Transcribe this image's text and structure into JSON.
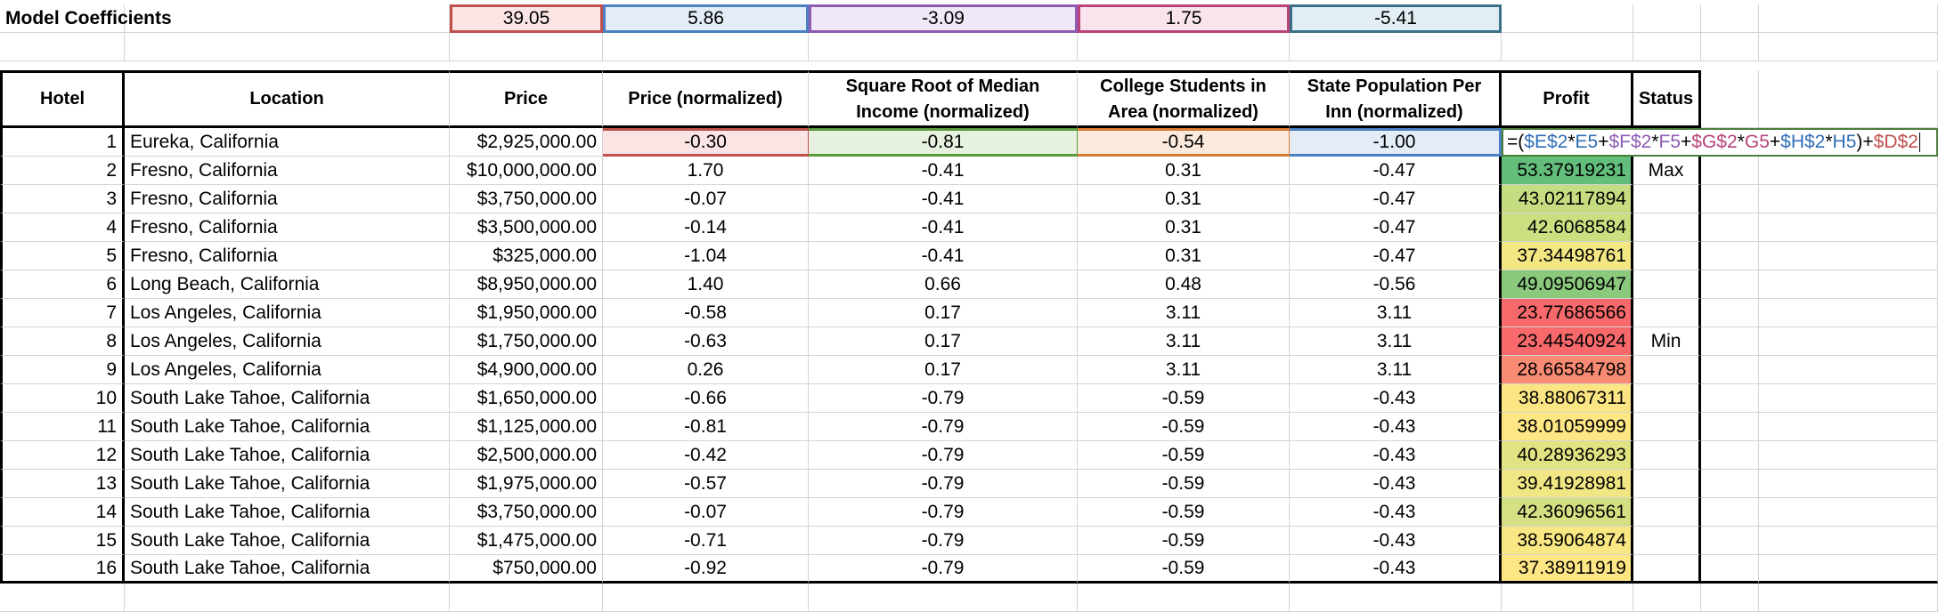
{
  "model_coefficients": {
    "label": "Model Coefficients",
    "values": [
      "39.05",
      "5.86",
      "-3.09",
      "1.75",
      "-5.41"
    ]
  },
  "headers": {
    "hotel": "Hotel",
    "location": "Location",
    "price": "Price",
    "price_normalized": "Price (normalized)",
    "income": "Square Root of Median Income (normalized)",
    "students": "College Students in Area (normalized)",
    "population": "State Population Per Inn (normalized)",
    "profit": "Profit",
    "status": "Status"
  },
  "formula": {
    "parts": [
      "=(",
      "$E$2",
      "*",
      "E5",
      "+",
      "$F$2",
      "*",
      "F5",
      "+",
      "$G$2",
      "*",
      "G5",
      "+",
      "$H$2",
      "*",
      "H5",
      ")+",
      "$D$2"
    ]
  },
  "rows": [
    {
      "hotel": "1",
      "location": "Eureka, California",
      "price": "$2,925,000.00",
      "price_n": "-0.30",
      "income": "-0.81",
      "students": "-0.54",
      "population": "-1.00",
      "profit": "",
      "status": ""
    },
    {
      "hotel": "2",
      "location": "Fresno, California",
      "price": "$10,000,000.00",
      "price_n": "1.70",
      "income": "-0.41",
      "students": "0.31",
      "population": "-0.47",
      "profit": "53.37919231",
      "status": "Max"
    },
    {
      "hotel": "3",
      "location": "Fresno, California",
      "price": "$3,750,000.00",
      "price_n": "-0.07",
      "income": "-0.41",
      "students": "0.31",
      "population": "-0.47",
      "profit": "43.02117894",
      "status": ""
    },
    {
      "hotel": "4",
      "location": "Fresno, California",
      "price": "$3,500,000.00",
      "price_n": "-0.14",
      "income": "-0.41",
      "students": "0.31",
      "population": "-0.47",
      "profit": "42.6068584",
      "status": ""
    },
    {
      "hotel": "5",
      "location": "Fresno, California",
      "price": "$325,000.00",
      "price_n": "-1.04",
      "income": "-0.41",
      "students": "0.31",
      "population": "-0.47",
      "profit": "37.34498761",
      "status": ""
    },
    {
      "hotel": "6",
      "location": "Long Beach, California",
      "price": "$8,950,000.00",
      "price_n": "1.40",
      "income": "0.66",
      "students": "0.48",
      "population": "-0.56",
      "profit": "49.09506947",
      "status": ""
    },
    {
      "hotel": "7",
      "location": "Los Angeles, California",
      "price": "$1,950,000.00",
      "price_n": "-0.58",
      "income": "0.17",
      "students": "3.11",
      "population": "3.11",
      "profit": "23.77686566",
      "status": ""
    },
    {
      "hotel": "8",
      "location": "Los Angeles, California",
      "price": "$1,750,000.00",
      "price_n": "-0.63",
      "income": "0.17",
      "students": "3.11",
      "population": "3.11",
      "profit": "23.44540924",
      "status": "Min"
    },
    {
      "hotel": "9",
      "location": "Los Angeles, California",
      "price": "$4,900,000.00",
      "price_n": "0.26",
      "income": "0.17",
      "students": "3.11",
      "population": "3.11",
      "profit": "28.66584798",
      "status": ""
    },
    {
      "hotel": "10",
      "location": "South Lake Tahoe, California",
      "price": "$1,650,000.00",
      "price_n": "-0.66",
      "income": "-0.79",
      "students": "-0.59",
      "population": "-0.43",
      "profit": "38.88067311",
      "status": ""
    },
    {
      "hotel": "11",
      "location": "South Lake Tahoe, California",
      "price": "$1,125,000.00",
      "price_n": "-0.81",
      "income": "-0.79",
      "students": "-0.59",
      "population": "-0.43",
      "profit": "38.01059999",
      "status": ""
    },
    {
      "hotel": "12",
      "location": "South Lake Tahoe, California",
      "price": "$2,500,000.00",
      "price_n": "-0.42",
      "income": "-0.79",
      "students": "-0.59",
      "population": "-0.43",
      "profit": "40.28936293",
      "status": ""
    },
    {
      "hotel": "13",
      "location": "South Lake Tahoe, California",
      "price": "$1,975,000.00",
      "price_n": "-0.57",
      "income": "-0.79",
      "students": "-0.59",
      "population": "-0.43",
      "profit": "39.41928981",
      "status": ""
    },
    {
      "hotel": "14",
      "location": "South Lake Tahoe, California",
      "price": "$3,750,000.00",
      "price_n": "-0.07",
      "income": "-0.79",
      "students": "-0.59",
      "population": "-0.43",
      "profit": "42.36096561",
      "status": ""
    },
    {
      "hotel": "15",
      "location": "South Lake Tahoe, California",
      "price": "$1,475,000.00",
      "price_n": "-0.71",
      "income": "-0.79",
      "students": "-0.59",
      "population": "-0.43",
      "profit": "38.59064874",
      "status": ""
    },
    {
      "hotel": "16",
      "location": "South Lake Tahoe, California",
      "price": "$750,000.00",
      "price_n": "-0.92",
      "income": "-0.79",
      "students": "-0.59",
      "population": "-0.43",
      "profit": "37.38911919",
      "status": ""
    }
  ],
  "profit_colors": [
    "#ffffff",
    "#63be7b",
    "#c5dd80",
    "#cbdf81",
    "#f2e783",
    "#8bc97d",
    "#f8696b",
    "#f8696b",
    "#f98a73",
    "#fbe583",
    "#fde683",
    "#e1e383",
    "#f0e683",
    "#d4e082",
    "#f9e783",
    "#ffe684"
  ],
  "colors": {
    "gridline": "#d4d4d4",
    "coef_red": "#c0504d",
    "coef_blue": "#4a7fc1",
    "coef_purple": "#8e5ab3",
    "coef_pink": "#b8437a",
    "coef_teal": "#3a7088",
    "formula_green": "#4a7d3a"
  }
}
